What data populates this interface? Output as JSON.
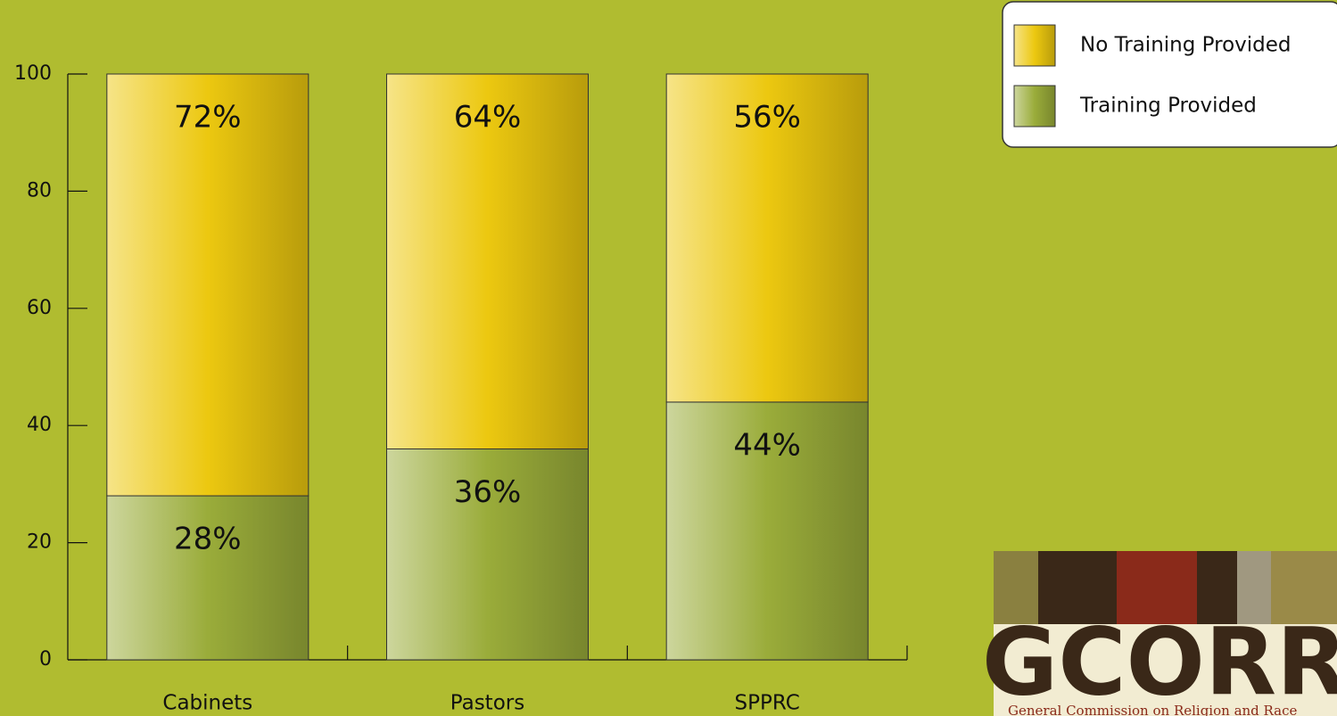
{
  "chart_data": {
    "type": "stacked_bar",
    "categories": [
      "Cabinets",
      "Pastors",
      "SPPRC"
    ],
    "series": [
      {
        "name": "Training Provided",
        "color": "#9aac3a",
        "values": [
          28,
          36,
          44
        ],
        "value_labels": [
          "28%",
          "36%",
          "44%"
        ]
      },
      {
        "name": "No Training Provided",
        "color": "#ecc810",
        "values": [
          72,
          64,
          56
        ],
        "value_labels": [
          "72%",
          "64%",
          "56%"
        ]
      }
    ],
    "ylim": [
      0,
      100
    ],
    "yticks": [
      0,
      20,
      40,
      60,
      80,
      100
    ],
    "legend": "top-right"
  },
  "logo": {
    "text": "GCORR",
    "subtitle": "General Commission on Religion and Race"
  }
}
